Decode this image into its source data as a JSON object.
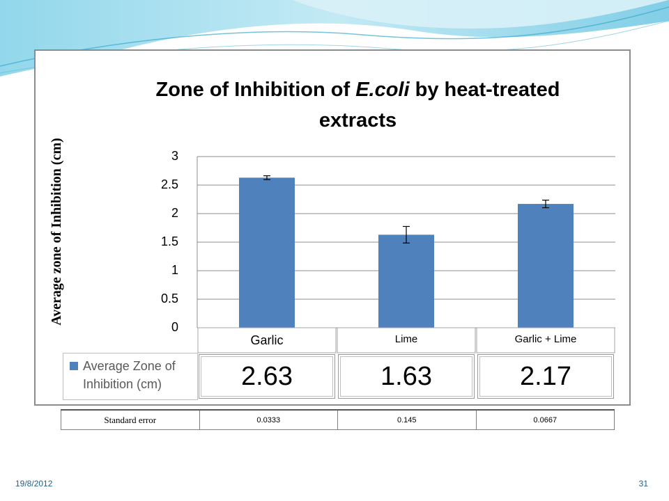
{
  "chart_data": {
    "type": "bar",
    "title_parts": [
      "Zone of Inhibition of ",
      "E.coli",
      " by heat-treated extracts"
    ],
    "ylabel": "Average zone of Inhibition (cm)",
    "ylim": [
      0,
      3
    ],
    "yticks": [
      "0",
      "0.5",
      "1",
      "1.5",
      "2",
      "2.5",
      "3"
    ],
    "categories": [
      "Garlic",
      "Lime",
      "Garlic + Lime"
    ],
    "series": [
      {
        "name": "Average Zone of Inhibition (cm)",
        "values": [
          2.63,
          1.63,
          2.17
        ],
        "errors": [
          0.0333,
          0.145,
          0.0667
        ],
        "color": "#4f81bd"
      }
    ],
    "data_table_values": [
      "2.63",
      "1.63",
      "2.17"
    ],
    "grid": true,
    "legend": "data-table-left"
  },
  "legend": {
    "line1": "Average Zone of",
    "line2": "Inhibition (cm)"
  },
  "standard_error": {
    "label": "Standard error",
    "values": [
      "0.0333",
      "0.145",
      "0.0667"
    ]
  },
  "footer": {
    "date": "19/8/2012",
    "page": "31"
  },
  "theme": {
    "bar_color": "#4f81bd",
    "accent": "#1f5f8b"
  }
}
